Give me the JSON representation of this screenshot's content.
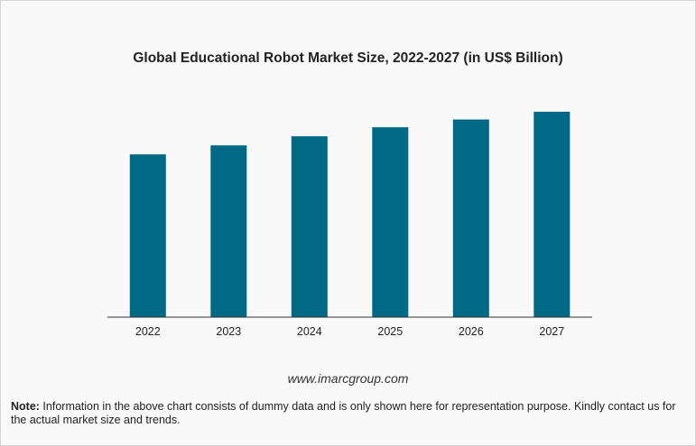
{
  "chart_data": {
    "type": "bar",
    "title": "Global Educational Robot Market Size, 2022-2027 (in US$ Billion)",
    "categories": [
      "2022",
      "2023",
      "2024",
      "2025",
      "2026",
      "2027"
    ],
    "values": [
      1.26,
      1.33,
      1.4,
      1.47,
      1.53,
      1.59
    ],
    "xlabel": "",
    "ylabel": "",
    "ylim": [
      0,
      1.59
    ],
    "grid": false,
    "bar_color": "#006a86"
  },
  "footer": {
    "source": "www.imarcgroup.com",
    "note_label": "Note:",
    "note_text": " Information in the above chart consists of dummy data and is only shown here for representation purpose. Kindly contact us for the actual market size and trends."
  }
}
